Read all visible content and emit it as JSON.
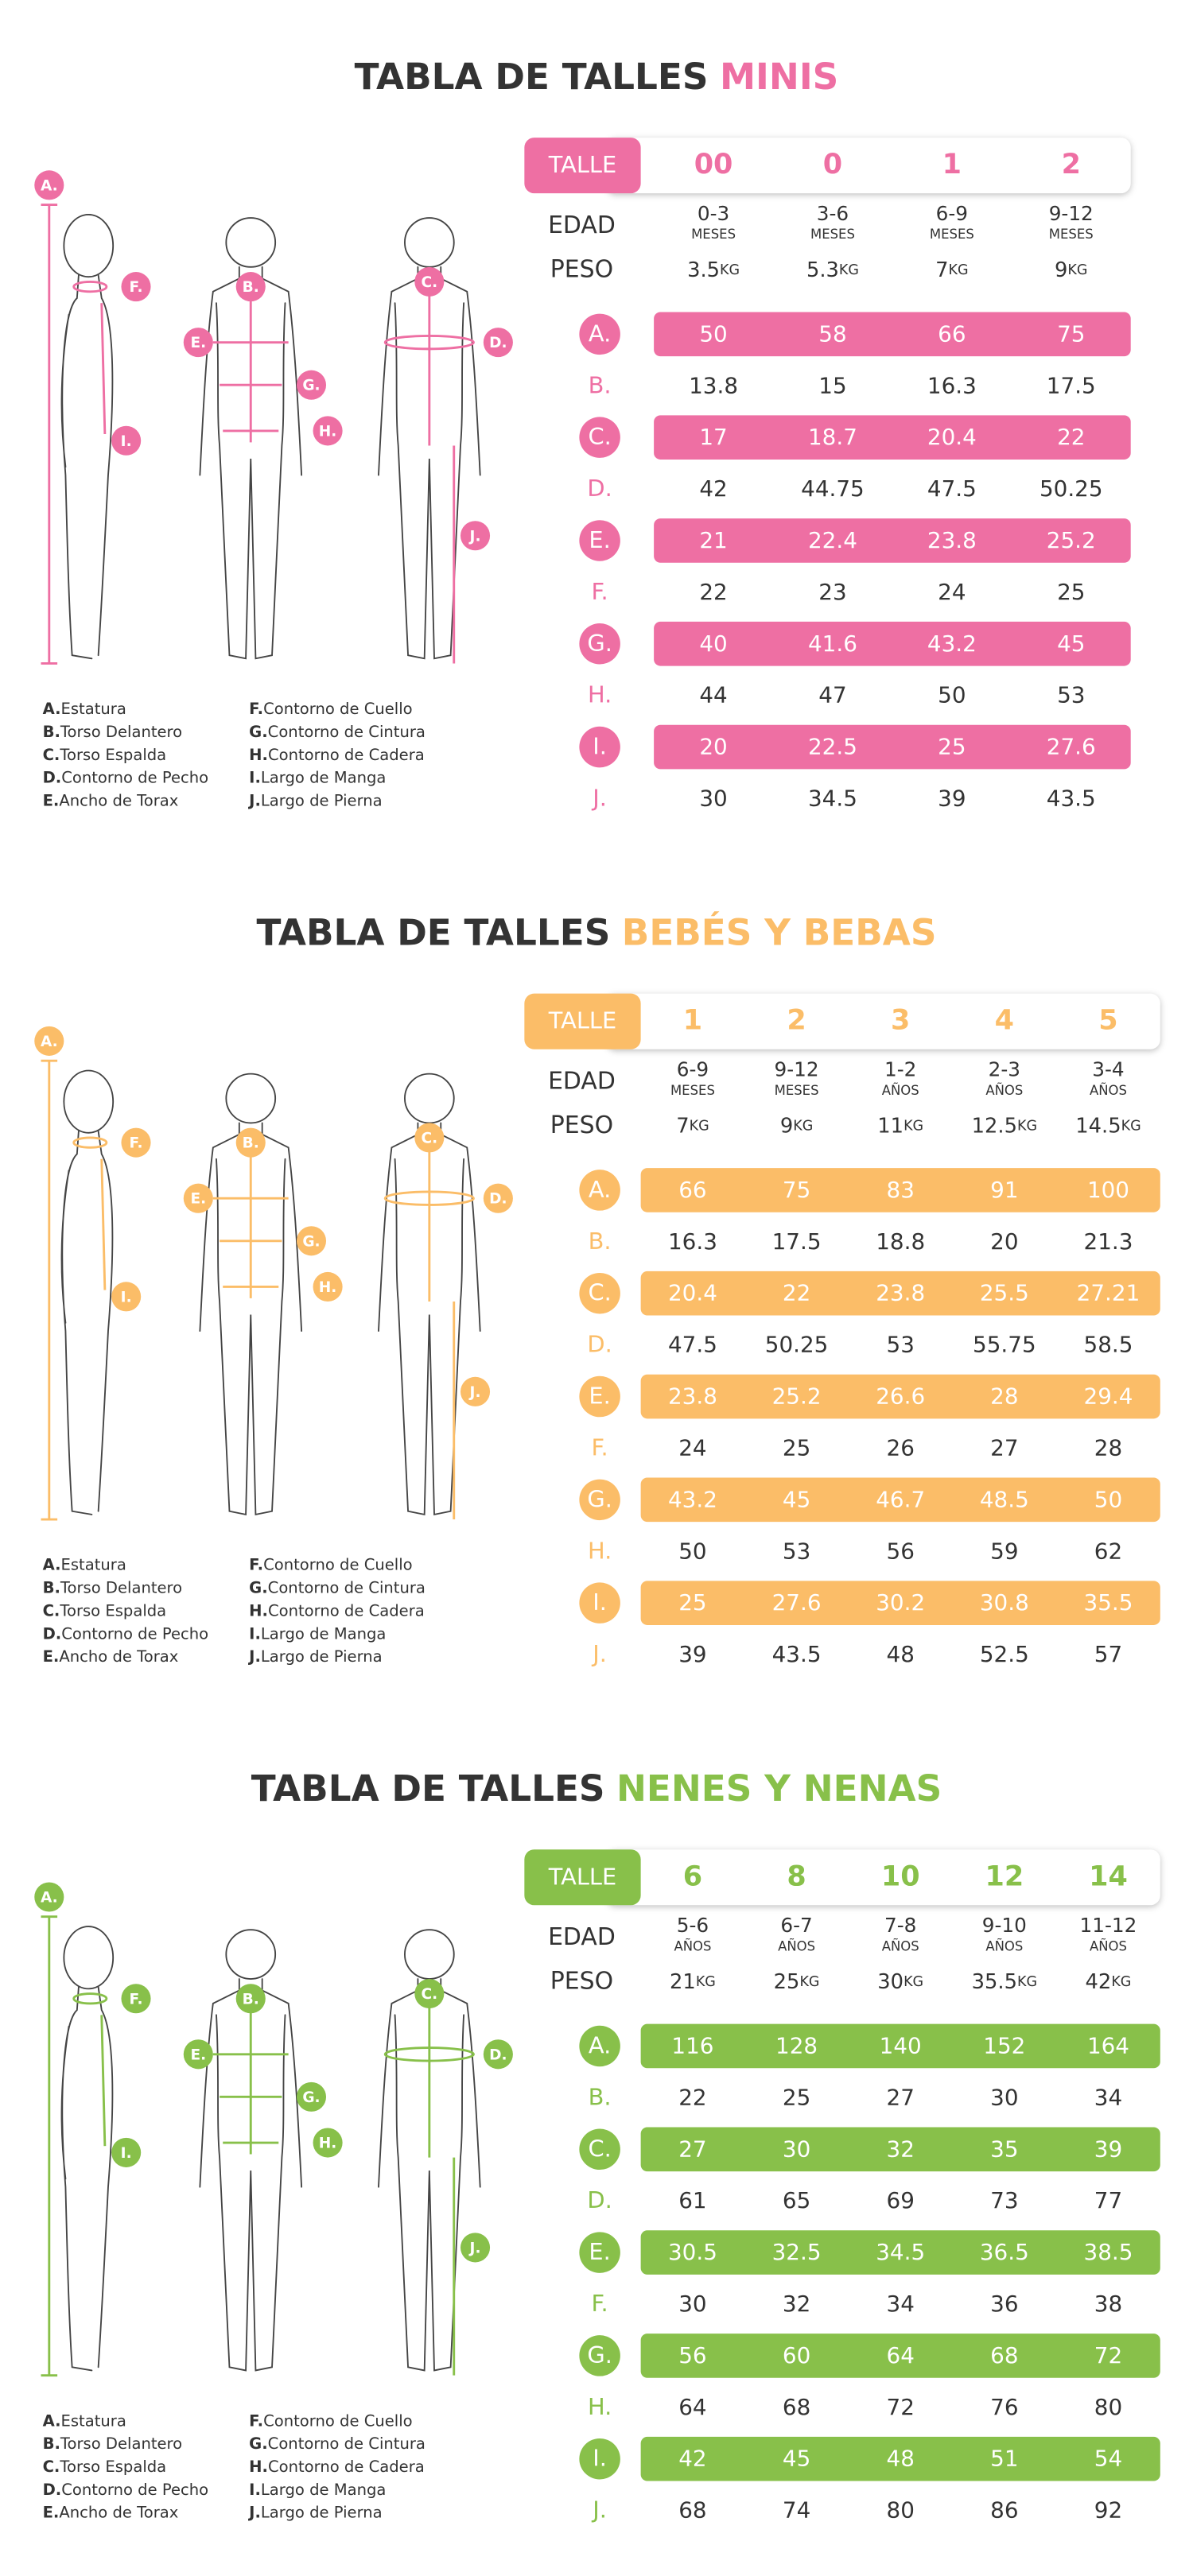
{
  "labels": {
    "talle": "TALLE",
    "edad": "EDAD",
    "peso": "PESO"
  },
  "legend": [
    {
      "letter": "A.",
      "text": "Estatura"
    },
    {
      "letter": "B.",
      "text": "Torso Delantero"
    },
    {
      "letter": "C.",
      "text": "Torso Espalda"
    },
    {
      "letter": "D.",
      "text": "Contorno de Pecho"
    },
    {
      "letter": "E.",
      "text": "Ancho de Torax"
    },
    {
      "letter": "F.",
      "text": "Contorno de Cuello"
    },
    {
      "letter": "G.",
      "text": "Contorno de Cintura"
    },
    {
      "letter": "H.",
      "text": "Contorno de Cadera"
    },
    {
      "letter": "I.",
      "text": "Largo de Manga"
    },
    {
      "letter": "J.",
      "text": "Largo de Pierna"
    }
  ],
  "sections": [
    {
      "title": "TABLA DE TALLES",
      "highlight": "MINIS",
      "color": "#ee6fa3",
      "sizes": [
        "00",
        "0",
        "1",
        "2"
      ],
      "ages": [
        {
          "value": "0-3",
          "unit": "MESES"
        },
        {
          "value": "3-6",
          "unit": "MESES"
        },
        {
          "value": "6-9",
          "unit": "MESES"
        },
        {
          "value": "9-12",
          "unit": "MESES"
        }
      ],
      "weights": [
        {
          "value": 3.5,
          "unit": "KG"
        },
        {
          "value": 5.3,
          "unit": "KG"
        },
        {
          "value": 7,
          "unit": "KG"
        },
        {
          "value": 9,
          "unit": "KG"
        }
      ],
      "rows": [
        {
          "label": "A.",
          "values": [
            50,
            58,
            66,
            75
          ]
        },
        {
          "label": "B.",
          "values": [
            13.8,
            15,
            16.3,
            17.5
          ]
        },
        {
          "label": "C.",
          "values": [
            17,
            18.7,
            20.4,
            22
          ]
        },
        {
          "label": "D.",
          "values": [
            42,
            44.75,
            47.5,
            50.25
          ]
        },
        {
          "label": "E.",
          "values": [
            21,
            22.4,
            23.8,
            25.2
          ]
        },
        {
          "label": "F.",
          "values": [
            22,
            23,
            24,
            25
          ]
        },
        {
          "label": "G.",
          "values": [
            40,
            41.6,
            43.2,
            45
          ]
        },
        {
          "label": "H.",
          "values": [
            44,
            47,
            50,
            53
          ]
        },
        {
          "label": "I.",
          "values": [
            20,
            22.5,
            25,
            27.6
          ]
        },
        {
          "label": "J.",
          "values": [
            30,
            34.5,
            39,
            43.5
          ]
        }
      ]
    },
    {
      "title": "TABLA DE TALLES",
      "highlight": "BEBÉS Y BEBAS",
      "color": "#fbbd68",
      "sizes": [
        "1",
        "2",
        "3",
        "4",
        "5"
      ],
      "ages": [
        {
          "value": "6-9",
          "unit": "MESES"
        },
        {
          "value": "9-12",
          "unit": "MESES"
        },
        {
          "value": "1-2",
          "unit": "AÑOS"
        },
        {
          "value": "2-3",
          "unit": "AÑOS"
        },
        {
          "value": "3-4",
          "unit": "AÑOS"
        }
      ],
      "weights": [
        {
          "value": 7,
          "unit": "KG"
        },
        {
          "value": 9,
          "unit": "KG"
        },
        {
          "value": 11,
          "unit": "KG"
        },
        {
          "value": 12.5,
          "unit": "KG"
        },
        {
          "value": 14.5,
          "unit": "KG"
        }
      ],
      "rows": [
        {
          "label": "A.",
          "values": [
            66,
            75,
            83,
            91,
            100
          ]
        },
        {
          "label": "B.",
          "values": [
            16.3,
            17.5,
            18.8,
            20,
            21.3
          ]
        },
        {
          "label": "C.",
          "values": [
            20.4,
            22,
            23.8,
            25.5,
            27.21
          ]
        },
        {
          "label": "D.",
          "values": [
            47.5,
            50.25,
            53,
            55.75,
            58.5
          ]
        },
        {
          "label": "E.",
          "values": [
            23.8,
            25.2,
            26.6,
            28,
            29.4
          ]
        },
        {
          "label": "F.",
          "values": [
            24,
            25,
            26,
            27,
            28
          ]
        },
        {
          "label": "G.",
          "values": [
            43.2,
            45,
            46.7,
            48.5,
            50
          ]
        },
        {
          "label": "H.",
          "values": [
            50,
            53,
            56,
            59,
            62
          ]
        },
        {
          "label": "I.",
          "values": [
            25,
            27.6,
            30.2,
            30.8,
            35.5
          ]
        },
        {
          "label": "J.",
          "values": [
            39,
            43.5,
            48,
            52.5,
            57
          ]
        }
      ]
    },
    {
      "title": "TABLA DE TALLES",
      "highlight": "NENES Y NENAS",
      "color": "#88c04a",
      "sizes": [
        "6",
        "8",
        "10",
        "12",
        "14"
      ],
      "ages": [
        {
          "value": "5-6",
          "unit": "AÑOS"
        },
        {
          "value": "6-7",
          "unit": "AÑOS"
        },
        {
          "value": "7-8",
          "unit": "AÑOS"
        },
        {
          "value": "9-10",
          "unit": "AÑOS"
        },
        {
          "value": "11-12",
          "unit": "AÑOS"
        }
      ],
      "weights": [
        {
          "value": 21,
          "unit": "KG"
        },
        {
          "value": 25,
          "unit": "KG"
        },
        {
          "value": 30,
          "unit": "KG"
        },
        {
          "value": 35.5,
          "unit": "KG"
        },
        {
          "value": 42,
          "unit": "KG"
        }
      ],
      "rows": [
        {
          "label": "A.",
          "values": [
            116,
            128,
            140,
            152,
            164
          ]
        },
        {
          "label": "B.",
          "values": [
            22,
            25,
            27,
            30,
            34
          ]
        },
        {
          "label": "C.",
          "values": [
            27,
            30,
            32,
            35,
            39
          ]
        },
        {
          "label": "D.",
          "values": [
            61,
            65,
            69,
            73,
            77
          ]
        },
        {
          "label": "E.",
          "values": [
            30.5,
            32.5,
            34.5,
            36.5,
            38.5
          ]
        },
        {
          "label": "F.",
          "values": [
            30,
            32,
            34,
            36,
            38
          ]
        },
        {
          "label": "G.",
          "values": [
            56,
            60,
            64,
            68,
            72
          ]
        },
        {
          "label": "H.",
          "values": [
            64,
            68,
            72,
            76,
            80
          ]
        },
        {
          "label": "I.",
          "values": [
            42,
            45,
            48,
            51,
            54
          ]
        },
        {
          "label": "J.",
          "values": [
            68,
            74,
            80,
            86,
            92
          ]
        }
      ]
    }
  ]
}
